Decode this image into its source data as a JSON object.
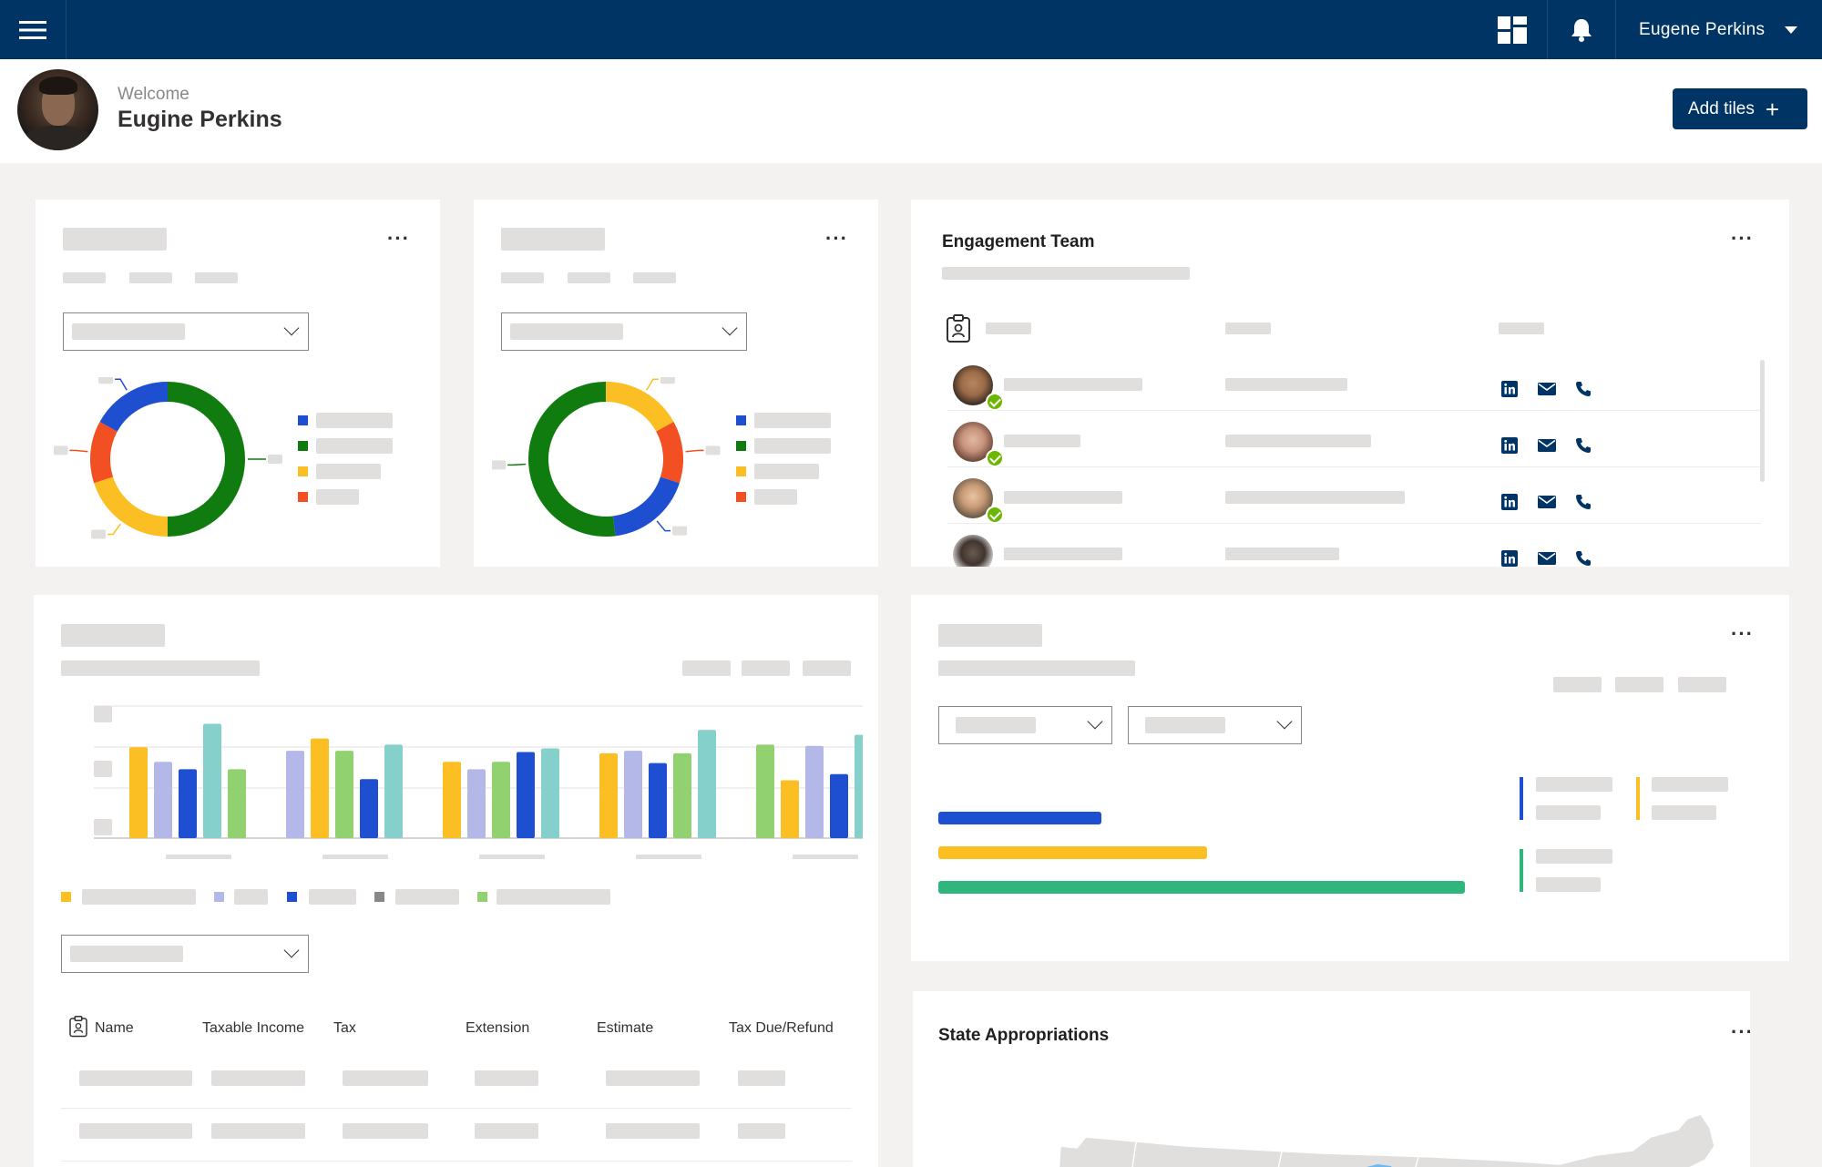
{
  "topbar": {
    "user_name": "Eugene Perkins"
  },
  "welcome": {
    "label": "Welcome",
    "name": "Eugine Perkins",
    "add_tiles_label": "Add tiles"
  },
  "cards": {
    "more_glyph": "···",
    "engagement_team": {
      "title": "Engagement Team"
    },
    "state_appropriations": {
      "title": "State Appropriations"
    }
  },
  "colors": {
    "blue": "#1f4fd1",
    "green": "#107c10",
    "yellow": "#fbbf24",
    "red": "#f25022",
    "lavender": "#b4b8e8",
    "teal": "#86d0cb",
    "lightgreen": "#92d16f",
    "grey": "#8a8886",
    "barGreen": "#2eb67d"
  },
  "donut1": {
    "segments": [
      {
        "color": "#107c10",
        "value": 0.5
      },
      {
        "color": "#fbbf24",
        "value": 0.2
      },
      {
        "color": "#f25022",
        "value": 0.13
      },
      {
        "color": "#1f4fd1",
        "value": 0.17
      }
    ]
  },
  "donut2": {
    "segments": [
      {
        "color": "#fbbf24",
        "value": 0.17
      },
      {
        "color": "#f25022",
        "value": 0.13
      },
      {
        "color": "#1f4fd1",
        "value": 0.18
      },
      {
        "color": "#107c10",
        "value": 0.52
      }
    ]
  },
  "bar_chart": {
    "series_colors": [
      "#fbbf24",
      "#b4b8e8",
      "#1f4fd1",
      "#86d0cb",
      "#92d16f",
      "#8a8886"
    ],
    "groups": [
      [
        [
          "#fbbf24",
          74
        ],
        [
          "#b4b8e8",
          62
        ],
        [
          "#1f4fd1",
          56
        ],
        [
          "#86d0cb",
          93
        ],
        [
          "#92d16f",
          56
        ]
      ],
      [
        [
          "#b4b8e8",
          71
        ],
        [
          "#fbbf24",
          81
        ],
        [
          "#92d16f",
          71
        ],
        [
          "#1f4fd1",
          48
        ],
        [
          "#86d0cb",
          76
        ]
      ],
      [
        [
          "#fbbf24",
          62
        ],
        [
          "#b4b8e8",
          56
        ],
        [
          "#92d16f",
          62
        ],
        [
          "#1f4fd1",
          70
        ],
        [
          "#86d0cb",
          73
        ]
      ],
      [
        [
          "#fbbf24",
          69
        ],
        [
          "#b4b8e8",
          71
        ],
        [
          "#1f4fd1",
          61
        ],
        [
          "#92d16f",
          69
        ],
        [
          "#86d0cb",
          88
        ]
      ],
      [
        [
          "#92d16f",
          76
        ],
        [
          "#fbbf24",
          47
        ],
        [
          "#b4b8e8",
          75
        ],
        [
          "#1f4fd1",
          52
        ],
        [
          "#86d0cb",
          84
        ]
      ]
    ]
  },
  "tax_table": {
    "headers": [
      "Name",
      "Taxable Income",
      "Tax",
      "Extension",
      "Estimate",
      "Tax Due/Refund"
    ]
  },
  "hbars": [
    {
      "color": "#1f4fd1",
      "fraction": 0.31
    },
    {
      "color": "#fbbf24",
      "fraction": 0.51
    },
    {
      "color": "#2eb67d",
      "fraction": 1.0
    }
  ]
}
